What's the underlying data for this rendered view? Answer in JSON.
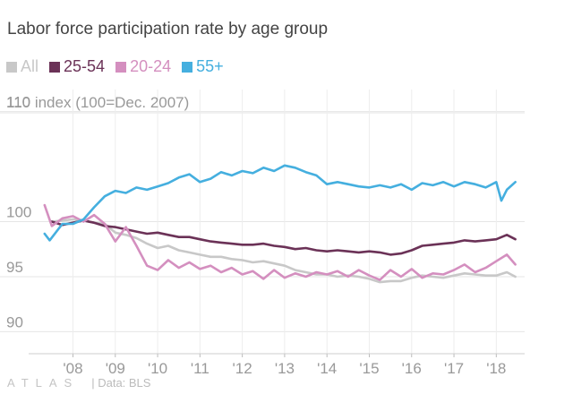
{
  "chart_data": {
    "type": "line",
    "title": "Labor force participation rate by age group",
    "ylabel": "index (100=Dec. 2007)",
    "ylim": [
      88,
      112
    ],
    "y_ticks": [
      90,
      95,
      100,
      110
    ],
    "y_tick_labels": [
      "90",
      "95",
      "100",
      "110"
    ],
    "top_tick_value": 110,
    "top_tick_label": "110",
    "xlim": [
      2007.08,
      2018.67
    ],
    "x_ticks": [
      2008,
      2009,
      2010,
      2011,
      2012,
      2013,
      2014,
      2015,
      2016,
      2017,
      2018
    ],
    "x_tick_labels": [
      "'08",
      "'09",
      "'10",
      "'11",
      "'12",
      "'13",
      "'14",
      "'15",
      "'16",
      "'17",
      "'18"
    ],
    "grid": true,
    "legend_position": "top-left",
    "series": [
      {
        "name": "All",
        "color": "#c8c8c8",
        "x": [
          2007.5,
          2007.75,
          2008.0,
          2008.25,
          2008.5,
          2008.75,
          2009.0,
          2009.25,
          2009.5,
          2009.75,
          2010.0,
          2010.25,
          2010.5,
          2010.75,
          2011.0,
          2011.25,
          2011.5,
          2011.75,
          2012.0,
          2012.25,
          2012.5,
          2012.75,
          2013.0,
          2013.25,
          2013.5,
          2013.75,
          2014.0,
          2014.25,
          2014.5,
          2014.75,
          2015.0,
          2015.25,
          2015.5,
          2015.75,
          2016.0,
          2016.25,
          2016.5,
          2016.75,
          2017.0,
          2017.25,
          2017.5,
          2017.75,
          2018.0,
          2018.25,
          2018.45
        ],
        "values": [
          100.0,
          100.1,
          100.2,
          100.1,
          99.9,
          99.8,
          99.0,
          98.8,
          98.5,
          98.0,
          97.6,
          97.8,
          97.4,
          97.2,
          97.0,
          96.8,
          96.8,
          96.6,
          96.5,
          96.3,
          96.4,
          96.2,
          96.0,
          95.6,
          95.4,
          95.2,
          95.2,
          95.0,
          95.1,
          95.0,
          94.8,
          94.5,
          94.6,
          94.6,
          94.9,
          95.1,
          95.0,
          94.9,
          95.1,
          95.3,
          95.2,
          95.1,
          95.1,
          95.4,
          95.0
        ]
      },
      {
        "name": "25-54",
        "color": "#6b3257",
        "x": [
          2007.5,
          2007.75,
          2008.0,
          2008.25,
          2008.5,
          2008.75,
          2009.0,
          2009.25,
          2009.5,
          2009.75,
          2010.0,
          2010.25,
          2010.5,
          2010.75,
          2011.0,
          2011.25,
          2011.5,
          2011.75,
          2012.0,
          2012.25,
          2012.5,
          2012.75,
          2013.0,
          2013.25,
          2013.5,
          2013.75,
          2014.0,
          2014.25,
          2014.5,
          2014.75,
          2015.0,
          2015.25,
          2015.5,
          2015.75,
          2016.0,
          2016.25,
          2016.5,
          2016.75,
          2017.0,
          2017.25,
          2017.5,
          2017.75,
          2018.0,
          2018.25,
          2018.45
        ],
        "values": [
          100.0,
          99.7,
          99.9,
          100.1,
          99.9,
          99.6,
          99.5,
          99.3,
          99.1,
          98.9,
          99.0,
          98.8,
          98.6,
          98.6,
          98.4,
          98.2,
          98.1,
          98.0,
          97.9,
          97.9,
          98.0,
          97.8,
          97.7,
          97.5,
          97.6,
          97.4,
          97.3,
          97.4,
          97.3,
          97.2,
          97.3,
          97.2,
          97.0,
          97.1,
          97.4,
          97.8,
          97.9,
          98.0,
          98.1,
          98.3,
          98.2,
          98.3,
          98.4,
          98.8,
          98.4
        ]
      },
      {
        "name": "20-24",
        "color": "#d48fbf",
        "x": [
          2007.33,
          2007.5,
          2007.75,
          2008.0,
          2008.25,
          2008.5,
          2008.75,
          2009.0,
          2009.25,
          2009.5,
          2009.75,
          2010.0,
          2010.25,
          2010.5,
          2010.75,
          2011.0,
          2011.25,
          2011.5,
          2011.75,
          2012.0,
          2012.25,
          2012.5,
          2012.75,
          2013.0,
          2013.25,
          2013.5,
          2013.75,
          2014.0,
          2014.25,
          2014.5,
          2014.75,
          2015.0,
          2015.25,
          2015.5,
          2015.75,
          2016.0,
          2016.25,
          2016.5,
          2016.75,
          2017.0,
          2017.25,
          2017.5,
          2017.75,
          2018.0,
          2018.25,
          2018.45
        ],
        "values": [
          101.5,
          99.6,
          100.3,
          100.5,
          100.0,
          100.6,
          99.8,
          98.2,
          99.5,
          97.8,
          96.0,
          95.6,
          96.5,
          95.8,
          96.3,
          95.7,
          96.0,
          95.4,
          95.8,
          95.2,
          95.5,
          94.8,
          95.6,
          94.9,
          95.3,
          95.0,
          95.4,
          95.2,
          95.5,
          95.0,
          95.6,
          95.1,
          94.7,
          95.6,
          95.0,
          95.7,
          94.9,
          95.3,
          95.2,
          95.6,
          96.1,
          95.4,
          95.8,
          96.4,
          97.0,
          96.1
        ]
      },
      {
        "name": "55+",
        "color": "#45afdf",
        "x": [
          2007.33,
          2007.45,
          2007.75,
          2008.0,
          2008.25,
          2008.5,
          2008.75,
          2009.0,
          2009.25,
          2009.5,
          2009.75,
          2010.0,
          2010.25,
          2010.5,
          2010.75,
          2011.0,
          2011.25,
          2011.5,
          2011.75,
          2012.0,
          2012.25,
          2012.5,
          2012.75,
          2013.0,
          2013.25,
          2013.5,
          2013.75,
          2014.0,
          2014.25,
          2014.5,
          2014.75,
          2015.0,
          2015.25,
          2015.5,
          2015.75,
          2016.0,
          2016.25,
          2016.5,
          2016.75,
          2017.0,
          2017.25,
          2017.5,
          2017.75,
          2018.0,
          2018.12,
          2018.25,
          2018.45
        ],
        "values": [
          98.9,
          98.3,
          99.8,
          99.8,
          100.2,
          101.3,
          102.3,
          102.8,
          102.6,
          103.1,
          102.9,
          103.2,
          103.5,
          104.0,
          104.3,
          103.6,
          103.9,
          104.5,
          104.2,
          104.6,
          104.4,
          104.9,
          104.6,
          105.1,
          104.9,
          104.5,
          104.2,
          103.4,
          103.6,
          103.4,
          103.2,
          103.1,
          103.3,
          103.1,
          103.4,
          102.9,
          103.5,
          103.3,
          103.6,
          103.2,
          103.6,
          103.4,
          103.1,
          103.6,
          101.9,
          102.9,
          103.6
        ]
      }
    ]
  },
  "footer": {
    "logo": "ATLAS",
    "source": "| Data: BLS"
  }
}
